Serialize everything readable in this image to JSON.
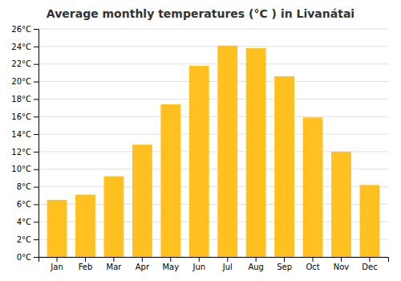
{
  "chart_data": {
    "type": "bar",
    "title": "Average monthly temperatures (°C ) in Livanátai",
    "categories": [
      "Jan",
      "Feb",
      "Mar",
      "Apr",
      "May",
      "Jun",
      "Jul",
      "Aug",
      "Sep",
      "Oct",
      "Nov",
      "Dec"
    ],
    "values": [
      6.5,
      7.1,
      9.2,
      12.8,
      17.4,
      21.8,
      24.1,
      23.8,
      20.6,
      15.9,
      12.0,
      8.2
    ],
    "color": "#FFC020",
    "ylim": [
      0,
      26
    ],
    "yticks": [
      {
        "value": 0,
        "label": "0°C"
      },
      {
        "value": 2,
        "label": "2°C"
      },
      {
        "value": 4,
        "label": "4°C"
      },
      {
        "value": 6,
        "label": "6°C"
      },
      {
        "value": 8,
        "label": "8°C"
      },
      {
        "value": 10,
        "label": "10°C"
      },
      {
        "value": 12,
        "label": "12°C"
      },
      {
        "value": 14,
        "label": "14°C"
      },
      {
        "value": 16,
        "label": "16°C"
      },
      {
        "value": 18,
        "label": "18°C"
      },
      {
        "value": 20,
        "label": "20°C"
      },
      {
        "value": 22,
        "label": "22°C"
      },
      {
        "value": 24,
        "label": "24°C"
      },
      {
        "value": 26,
        "label": "26°C"
      }
    ],
    "grid": true
  }
}
